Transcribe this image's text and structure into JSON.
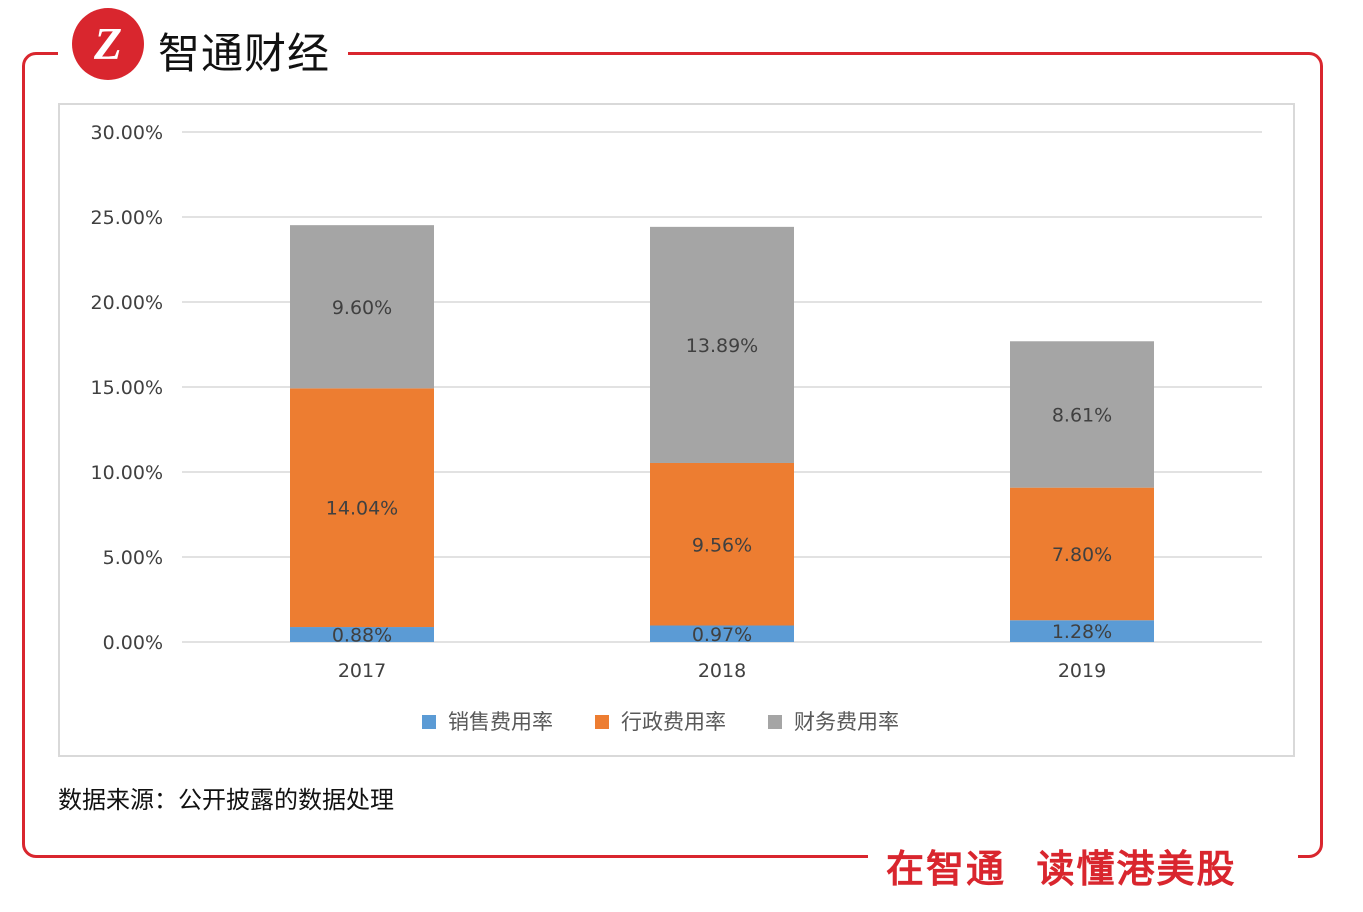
{
  "brand": {
    "name": "智通财经",
    "logo_mark": "Z",
    "slogan": "在智通  读懂港美股",
    "color": "#d9262e"
  },
  "source": "数据来源：公开披露的数据处理",
  "chart_data": {
    "type": "bar",
    "stacked": true,
    "categories": [
      "2017",
      "2018",
      "2019"
    ],
    "series": [
      {
        "name": "销售费用率",
        "color": "#5B9BD5",
        "values": [
          0.88,
          0.97,
          1.28
        ],
        "labels": [
          "0.88%",
          "0.97%",
          "1.28%"
        ]
      },
      {
        "name": "行政费用率",
        "color": "#ED7D31",
        "values": [
          14.04,
          9.56,
          7.8
        ],
        "labels": [
          "14.04%",
          "9.56%",
          "7.80%"
        ]
      },
      {
        "name": "财务费用率",
        "color": "#A5A5A5",
        "values": [
          9.6,
          13.89,
          8.61
        ],
        "labels": [
          "9.60%",
          "13.89%",
          "8.61%"
        ]
      }
    ],
    "ylim": [
      0,
      30
    ],
    "yticks": [
      "0.00%",
      "5.00%",
      "10.00%",
      "15.00%",
      "20.00%",
      "25.00%",
      "30.00%"
    ],
    "grid": true,
    "legend": "bottom"
  }
}
